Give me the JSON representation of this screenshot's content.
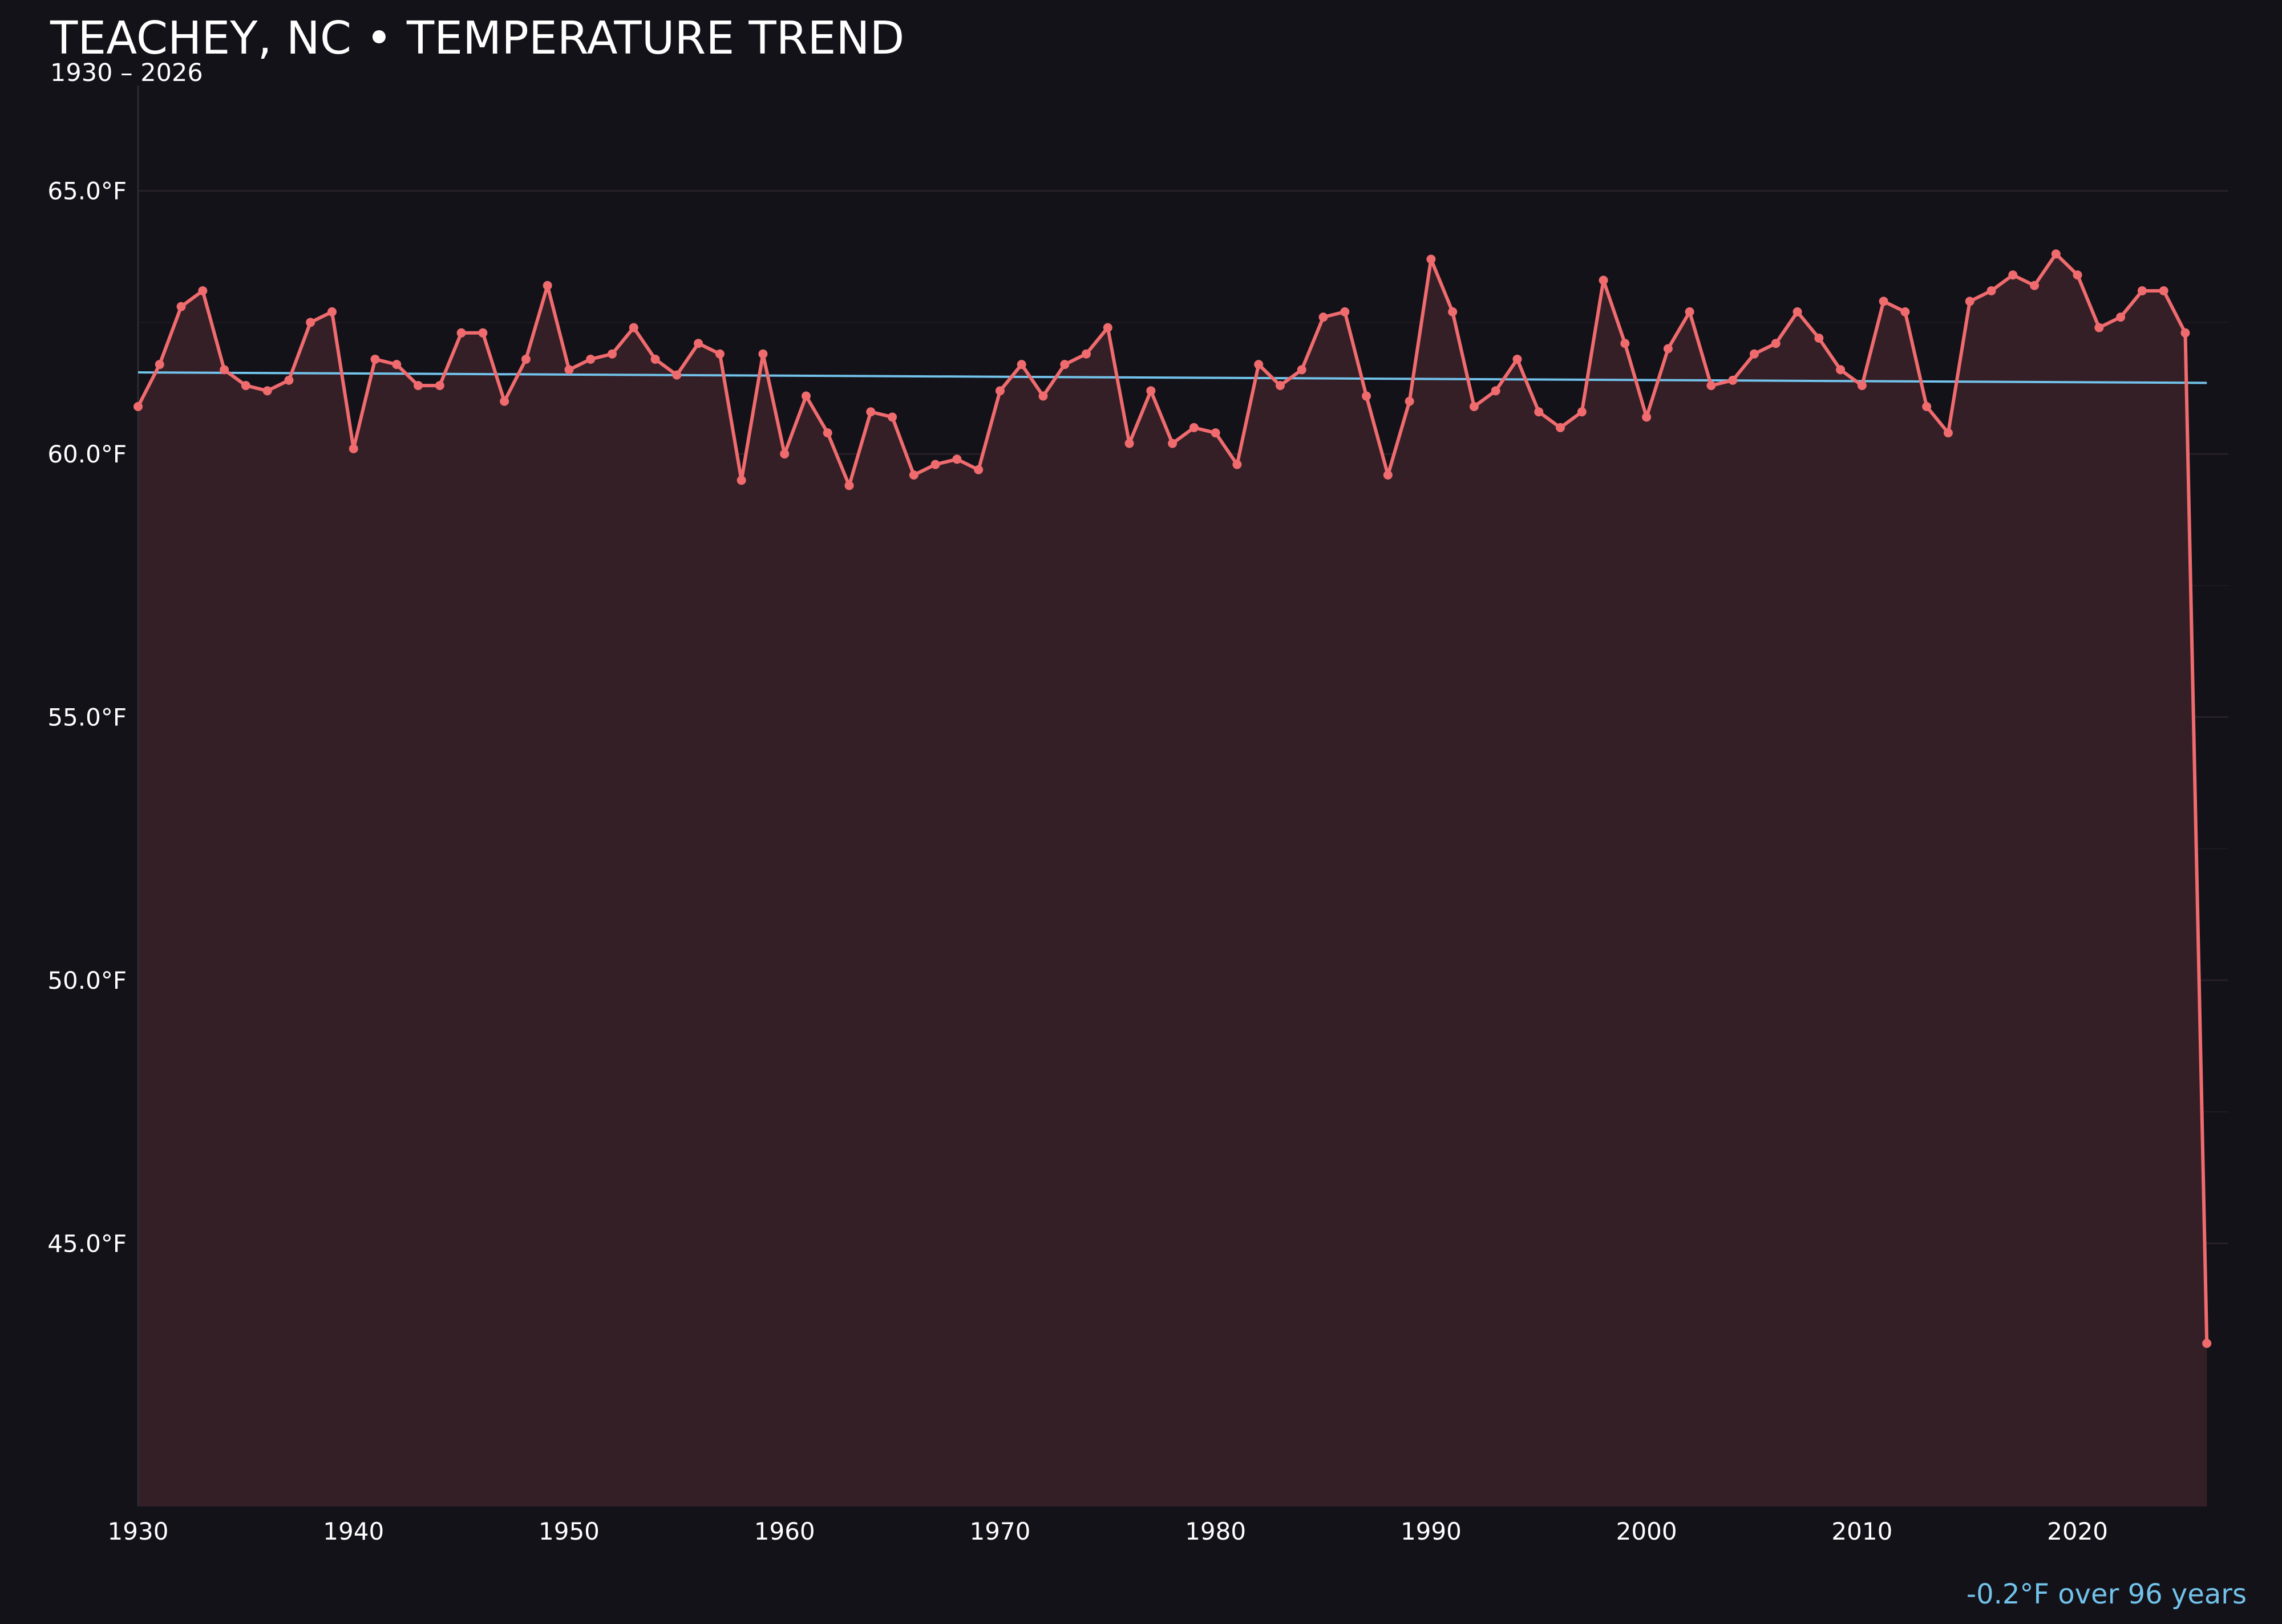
{
  "colors": {
    "background": "#131219",
    "series_line": "#ef6b6e",
    "series_fill": "#351f26",
    "trend_line": "#72c2ea",
    "grid": "#2b222a",
    "text": "#ffffff"
  },
  "title": "TEACHEY, NC • TEMPERATURE TREND",
  "subtitle": "1930 – 2026",
  "trend_note": "-0.2°F over 96 years",
  "chart_data": {
    "type": "line",
    "title": "TEACHEY, NC • TEMPERATURE TREND",
    "subtitle": "1930 – 2026",
    "xlabel": "",
    "ylabel": "",
    "xlim": [
      1930,
      2027
    ],
    "ylim": [
      40,
      67
    ],
    "x_ticks": [
      1930,
      1940,
      1950,
      1960,
      1970,
      1980,
      1990,
      2000,
      2010,
      2020
    ],
    "y_ticks": [
      45,
      50,
      55,
      60,
      65
    ],
    "y_tick_labels": [
      "45.0°F",
      "50.0°F",
      "55.0°F",
      "60.0°F",
      "65.0°F"
    ],
    "grid": "horizontal",
    "area_fill": true,
    "series": [
      {
        "x": [
          1930,
          1931,
          1932,
          1933,
          1934,
          1935,
          1936,
          1937,
          1938,
          1939,
          1940,
          1941,
          1942,
          1943,
          1944,
          1945,
          1946,
          1947,
          1948,
          1949,
          1950,
          1951,
          1952,
          1953,
          1954,
          1955,
          1956,
          1957,
          1958,
          1959,
          1960,
          1961,
          1962,
          1963,
          1964,
          1965,
          1966,
          1967,
          1968,
          1969,
          1970,
          1971,
          1972,
          1973,
          1974,
          1975,
          1976,
          1977,
          1978,
          1979,
          1980,
          1981,
          1982,
          1983,
          1984,
          1985,
          1986,
          1987,
          1988,
          1989,
          1990,
          1991,
          1992,
          1993,
          1994,
          1995,
          1996,
          1997,
          1998,
          1999,
          2000,
          2001,
          2002,
          2003,
          2004,
          2005,
          2006,
          2007,
          2008,
          2009,
          2010,
          2011,
          2012,
          2013,
          2014,
          2015,
          2016,
          2017,
          2018,
          2019,
          2020,
          2021,
          2022,
          2023,
          2024,
          2025,
          2026
        ],
        "values": [
          60.9,
          61.7,
          62.8,
          63.1,
          61.6,
          61.3,
          61.2,
          61.4,
          62.5,
          62.7,
          60.1,
          61.8,
          61.7,
          61.3,
          61.3,
          62.3,
          62.3,
          61.0,
          61.8,
          63.2,
          61.6,
          61.8,
          61.9,
          62.4,
          61.8,
          61.5,
          62.1,
          61.9,
          59.5,
          61.9,
          60.0,
          61.1,
          60.4,
          59.4,
          60.8,
          60.7,
          59.6,
          59.8,
          59.9,
          59.7,
          61.2,
          61.7,
          61.1,
          61.7,
          61.9,
          62.4,
          60.2,
          61.2,
          60.2,
          60.5,
          60.4,
          59.8,
          61.7,
          61.3,
          61.6,
          62.6,
          62.7,
          61.1,
          59.6,
          61.0,
          63.7,
          62.7,
          60.9,
          61.2,
          61.8,
          60.8,
          60.5,
          60.8,
          63.3,
          62.1,
          60.7,
          62.0,
          62.7,
          61.3,
          61.4,
          61.9,
          62.1,
          62.7,
          62.2,
          61.6,
          61.3,
          62.9,
          62.7,
          60.9,
          60.4,
          62.9,
          63.1,
          63.4,
          63.2,
          63.8,
          63.4,
          62.4,
          62.6,
          63.1,
          63.1,
          62.3,
          43.1
        ]
      }
    ],
    "trend_line": {
      "x": [
        1930,
        2026
      ],
      "y": [
        61.55,
        61.35
      ]
    },
    "annotation": "-0.2°F over 96 years"
  }
}
